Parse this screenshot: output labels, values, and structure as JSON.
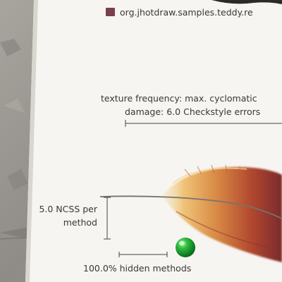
{
  "poster": {
    "legend_swatch_color": "#7a3f4a",
    "legend_text": "org.jhotdraw.samples.teddy.re",
    "texture_line1": "texture frequency: max. cyclomatic",
    "texture_line2": "damage: 6.0 Checkstyle errors",
    "ncss_line1": "5.0 NCSS per",
    "ncss_line2": "method",
    "hidden_label": "100.0% hidden methods"
  },
  "chart_data": {
    "type": "other",
    "legend": [
      {
        "label": "org.jhotdraw.samples.teddy.re",
        "color": "#7a3f4a"
      }
    ],
    "annotations": [
      "texture frequency: max. cyclomatic",
      "damage: 6.0 Checkstyle errors",
      "5.0 NCSS per method",
      "100.0% hidden methods"
    ],
    "scales": {
      "ncss_per_method": 5.0,
      "hidden_methods_percent": 100.0,
      "checkstyle_errors": 6.0
    },
    "marker_color": "#22a43a",
    "feather_colors": [
      "#f3d9a2",
      "#e3a64c",
      "#b5502f",
      "#7a2a2a"
    ]
  }
}
